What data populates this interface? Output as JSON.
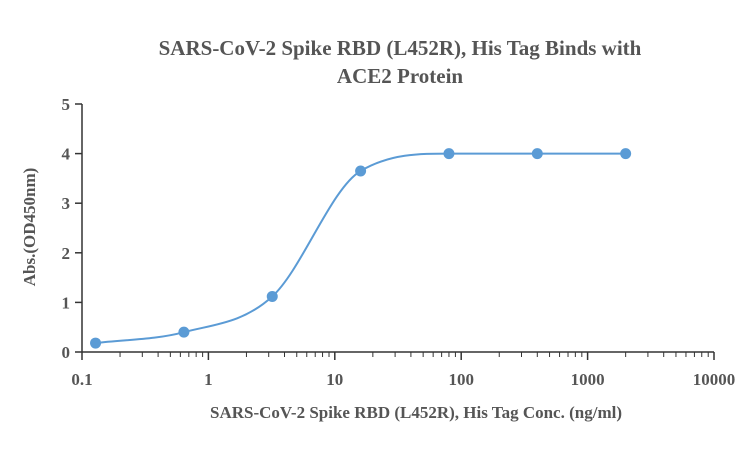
{
  "chart_data": {
    "type": "scatter",
    "title_lines": [
      "SARS-CoV-2 Spike RBD (L452R), His Tag Binds with",
      "ACE2 Protein"
    ],
    "xlabel": "SARS-CoV-2 Spike RBD (L452R), His Tag Conc. (ng/ml)",
    "ylabel": "Abs.(OD450nm)",
    "x_scale": "log",
    "xlim": [
      0.1,
      10000
    ],
    "ylim": [
      0,
      5
    ],
    "x_ticks": [
      0.1,
      1,
      10,
      100,
      1000,
      10000
    ],
    "x_tick_labels": [
      "0.1",
      "1",
      "10",
      "100",
      "1000",
      "10000"
    ],
    "y_ticks": [
      0,
      1,
      2,
      3,
      4,
      5
    ],
    "y_tick_labels": [
      "0",
      "1",
      "2",
      "3",
      "4",
      "5"
    ],
    "grid": false,
    "series": [
      {
        "x": [
          0.128,
          0.64,
          3.2,
          16,
          80,
          400,
          2000
        ],
        "y": [
          0.18,
          0.4,
          1.12,
          3.65,
          4.0,
          4.0,
          4.0
        ],
        "color": "#5b9bd5",
        "fit": "sigmoidal-curve"
      }
    ]
  }
}
